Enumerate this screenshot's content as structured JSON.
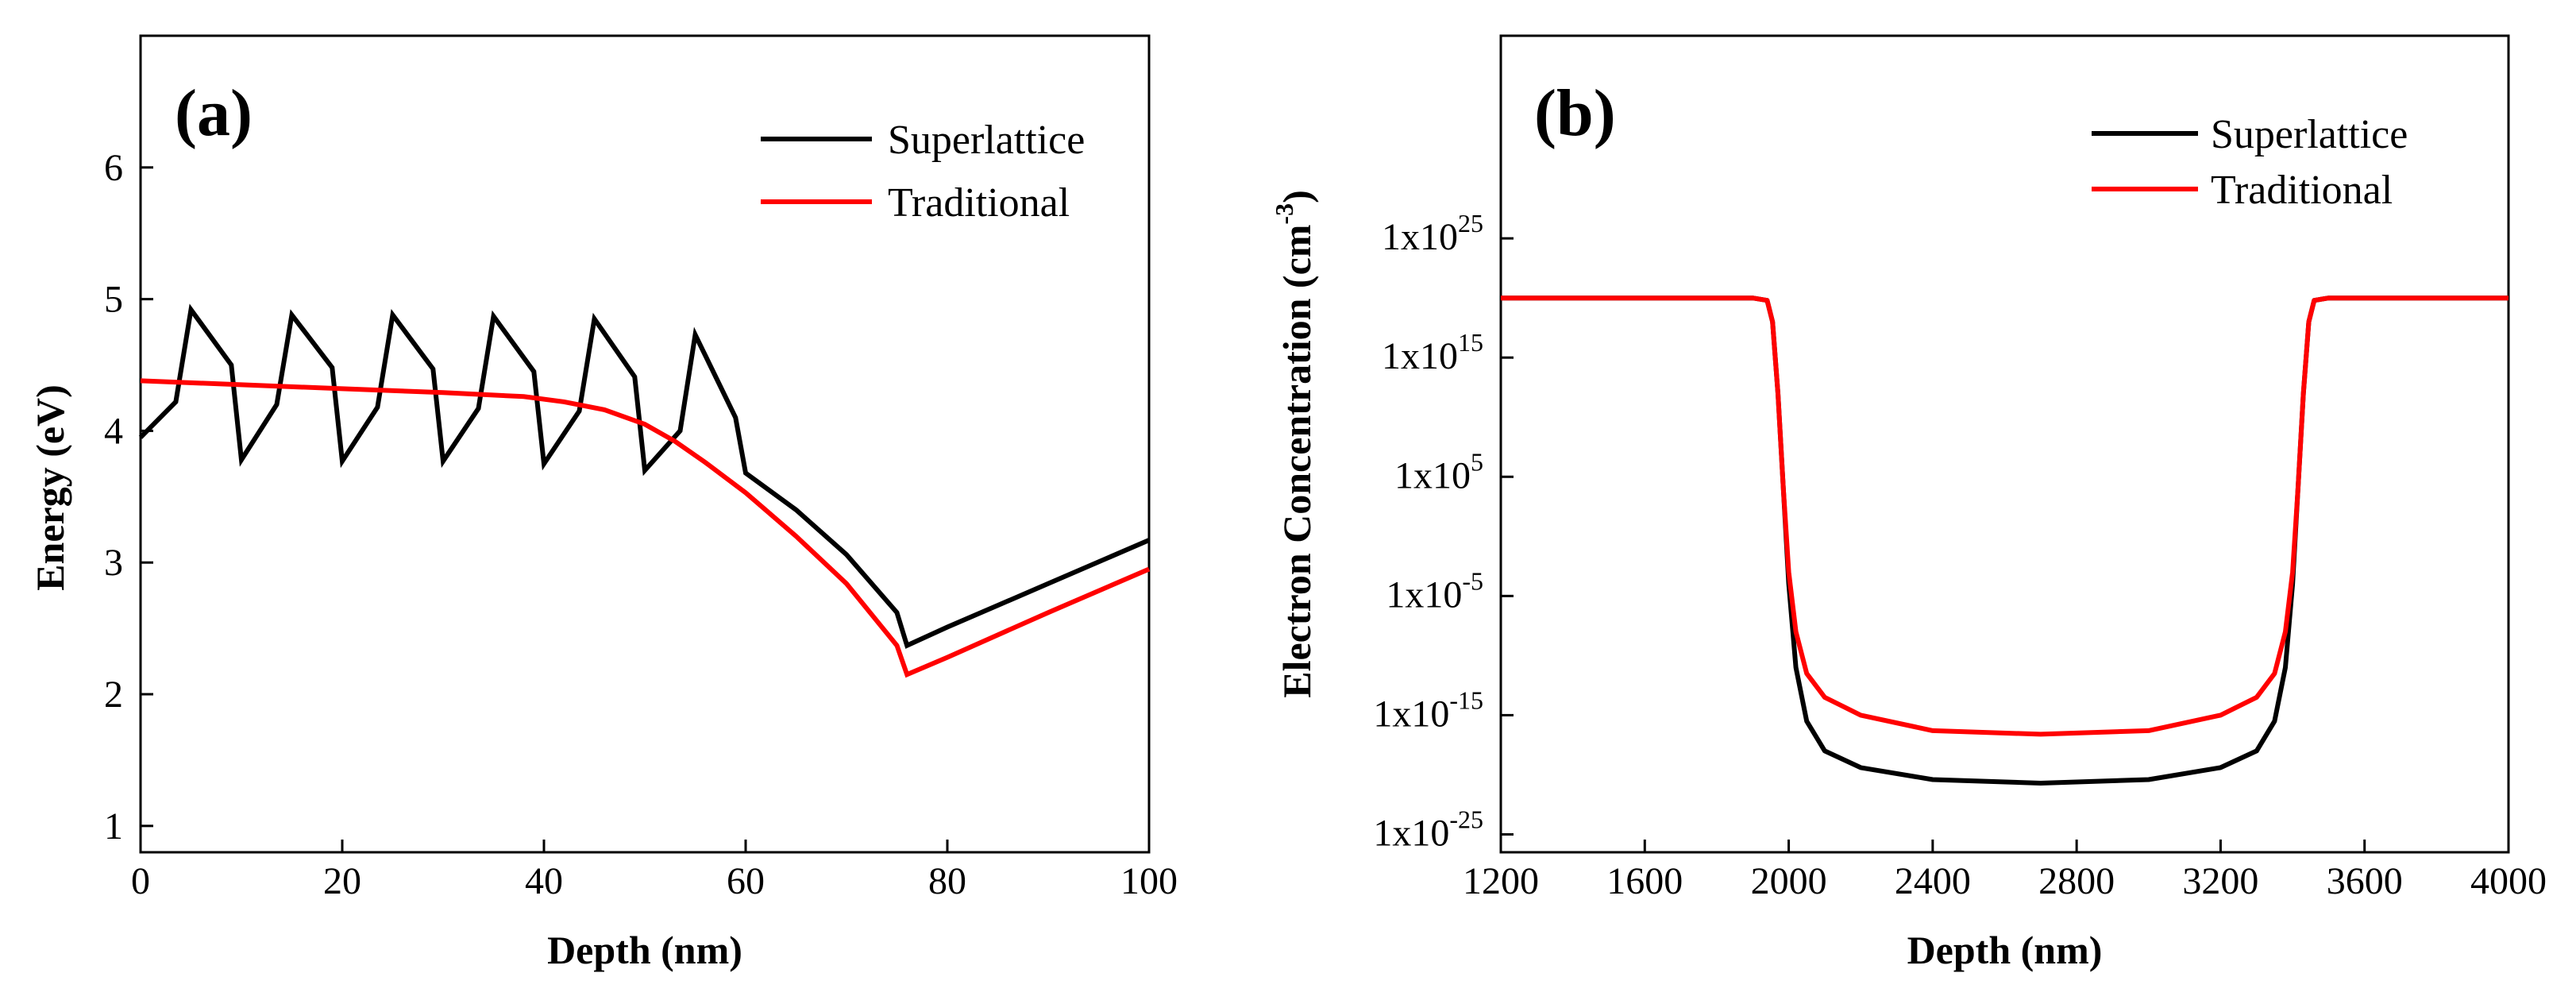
{
  "chart_data": [
    {
      "panel": "(a)",
      "type": "line",
      "xlabel": "Depth (nm)",
      "ylabel": "Energy (eV)",
      "xlim": [
        0,
        100
      ],
      "ylim": [
        0.8,
        7.0
      ],
      "xticks": [
        0,
        20,
        40,
        60,
        80,
        100
      ],
      "yticks": [
        1,
        2,
        3,
        4,
        5,
        6
      ],
      "legend": {
        "position": "top-right",
        "entries": [
          "Superlattice",
          "Traditional"
        ]
      },
      "series": [
        {
          "name": "Superlattice",
          "color": "#000000",
          "points": [
            [
              0,
              3.95
            ],
            [
              3.5,
              4.22
            ],
            [
              5,
              4.92
            ],
            [
              9,
              4.5
            ],
            [
              10,
              3.78
            ],
            [
              13.5,
              4.2
            ],
            [
              15,
              4.88
            ],
            [
              19,
              4.48
            ],
            [
              20,
              3.77
            ],
            [
              23.5,
              4.18
            ],
            [
              25,
              4.88
            ],
            [
              29,
              4.47
            ],
            [
              30,
              3.77
            ],
            [
              33.5,
              4.17
            ],
            [
              35,
              4.87
            ],
            [
              39,
              4.45
            ],
            [
              40,
              3.75
            ],
            [
              43.5,
              4.15
            ],
            [
              45,
              4.85
            ],
            [
              49,
              4.41
            ],
            [
              50,
              3.7
            ],
            [
              53.5,
              4.0
            ],
            [
              55,
              4.73
            ],
            [
              59,
              4.1
            ],
            [
              60,
              3.68
            ],
            [
              65,
              3.4
            ],
            [
              70,
              3.06
            ],
            [
              75,
              2.62
            ],
            [
              76,
              2.37
            ],
            [
              80,
              2.51
            ],
            [
              90,
              2.84
            ],
            [
              100,
              3.17
            ]
          ]
        },
        {
          "name": "Traditional",
          "color": "#ff0000",
          "points": [
            [
              0,
              4.38
            ],
            [
              10,
              4.35
            ],
            [
              20,
              4.32
            ],
            [
              30,
              4.29
            ],
            [
              38,
              4.26
            ],
            [
              42,
              4.22
            ],
            [
              46,
              4.16
            ],
            [
              50,
              4.05
            ],
            [
              53,
              3.92
            ],
            [
              56,
              3.76
            ],
            [
              60,
              3.53
            ],
            [
              65,
              3.2
            ],
            [
              70,
              2.84
            ],
            [
              75,
              2.37
            ],
            [
              76,
              2.15
            ],
            [
              80,
              2.28
            ],
            [
              90,
              2.62
            ],
            [
              100,
              2.95
            ]
          ]
        }
      ]
    },
    {
      "panel": "(b)",
      "type": "line",
      "xlabel": "Depth (nm)",
      "ylabel": "Electron Concentration (cm-3)",
      "xlim": [
        1200,
        4000
      ],
      "ylim_log10": [
        -26.5,
        42
      ],
      "xticks": [
        1200,
        1600,
        2000,
        2400,
        2800,
        3200,
        3600,
        4000
      ],
      "yticks_log10": [
        -25,
        -15,
        -5,
        5,
        15,
        25
      ],
      "legend": {
        "position": "top-right",
        "entries": [
          "Superlattice",
          "Traditional"
        ]
      },
      "series": [
        {
          "name": "Superlattice",
          "color": "#000000",
          "points_log10": [
            [
              1200,
              20
            ],
            [
              1900,
              20
            ],
            [
              1940,
              19.8
            ],
            [
              1955,
              18
            ],
            [
              1970,
              12
            ],
            [
              1985,
              4
            ],
            [
              2000,
              -4
            ],
            [
              2020,
              -11
            ],
            [
              2050,
              -15.5
            ],
            [
              2100,
              -18
            ],
            [
              2200,
              -19.4
            ],
            [
              2400,
              -20.4
            ],
            [
              2700,
              -20.7
            ],
            [
              3000,
              -20.4
            ],
            [
              3200,
              -19.4
            ],
            [
              3300,
              -18
            ],
            [
              3350,
              -15.5
            ],
            [
              3380,
              -11
            ],
            [
              3400,
              -4
            ],
            [
              3415,
              4
            ],
            [
              3430,
              12
            ],
            [
              3445,
              18
            ],
            [
              3460,
              19.8
            ],
            [
              3500,
              20
            ],
            [
              4000,
              20
            ]
          ]
        },
        {
          "name": "Traditional",
          "color": "#ff0000",
          "points_log10": [
            [
              1200,
              20
            ],
            [
              1900,
              20
            ],
            [
              1940,
              19.8
            ],
            [
              1955,
              18
            ],
            [
              1970,
              12
            ],
            [
              1985,
              4
            ],
            [
              2000,
              -3
            ],
            [
              2020,
              -8
            ],
            [
              2050,
              -11.5
            ],
            [
              2100,
              -13.5
            ],
            [
              2200,
              -15
            ],
            [
              2400,
              -16.3
            ],
            [
              2700,
              -16.6
            ],
            [
              3000,
              -16.3
            ],
            [
              3200,
              -15
            ],
            [
              3300,
              -13.5
            ],
            [
              3350,
              -11.5
            ],
            [
              3380,
              -8
            ],
            [
              3400,
              -3
            ],
            [
              3415,
              4
            ],
            [
              3430,
              12
            ],
            [
              3445,
              18
            ],
            [
              3460,
              19.8
            ],
            [
              3500,
              20
            ],
            [
              4000,
              20
            ]
          ]
        }
      ]
    }
  ],
  "ylabels_b": [
    "1x10",
    "1x10",
    "1x10",
    "1x10",
    "1x10",
    "1x10"
  ],
  "ylabels_b_exp": [
    "-25",
    "-15",
    "-5",
    "5",
    "15",
    "25"
  ],
  "ylabel_b_unit": "(cm",
  "ylabel_b_main": "Electron Concentration ",
  "ylabel_b_exp": "-3",
  "ylabel_b_close": ")"
}
